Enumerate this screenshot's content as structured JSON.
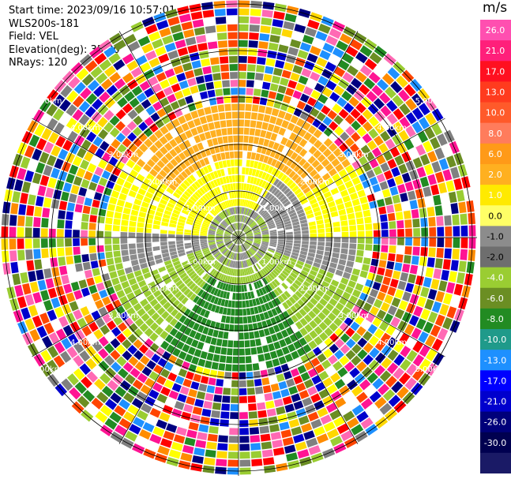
{
  "info": {
    "start_time": "Start time: 2023/09/16 10:57:01",
    "device": "WLS200s-181",
    "field": "Field: VEL",
    "elevation": "Elevation(deg): 35.30",
    "nrays": "NRays: 120"
  },
  "chart_data": {
    "type": "heatmap",
    "projection": "polar-ppi",
    "field": "VEL",
    "range_ring_labels": [
      "1.00km",
      "2.00km",
      "3.00km",
      "4.00km",
      "5.00km"
    ],
    "colorbar": {
      "unit": "m/s",
      "ticks": [
        "26.0",
        "21.0",
        "17.0",
        "13.0",
        "10.0",
        "8.0",
        "6.0",
        "2.0",
        "1.0",
        "0.0",
        "-1.0",
        "-2.0",
        "-4.0",
        "-6.0",
        "-8.0",
        "-10.0",
        "-13.0",
        "-17.0",
        "-21.0",
        "-26.0",
        "-30.0"
      ],
      "colors": [
        "#ff4fb0",
        "#ff1f7a",
        "#ff1020",
        "#ff3b1e",
        "#ff5a2a",
        "#ff7c5c",
        "#ff9a18",
        "#ffb020",
        "#ffea00",
        "#ffff66",
        "#8c8c8c",
        "#6e6e6e",
        "#9acd32",
        "#6b8e23",
        "#228b22",
        "#1f9a8a",
        "#1e90ff",
        "#0000ff",
        "#0000cd",
        "#00007a",
        "#000050",
        "#1a1a66"
      ]
    }
  }
}
